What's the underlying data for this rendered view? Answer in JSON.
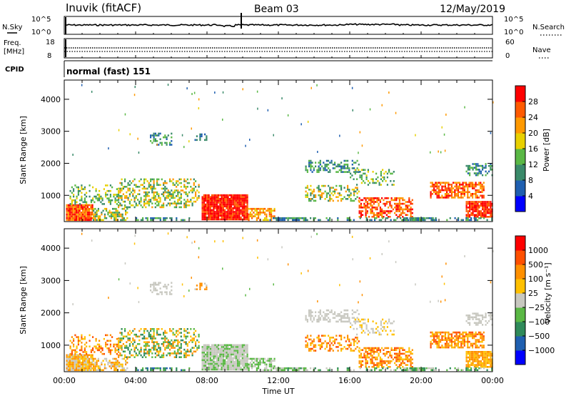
{
  "header": {
    "station": "Inuvik (fitACF)",
    "beam": "Beam 03",
    "date": "12/May/2019"
  },
  "strip_labels": {
    "nsky": "N.Sky",
    "nsearch": "N.Search",
    "freq_l1": "Freq.",
    "freq_l2": "[MHz]",
    "nave": "Nave",
    "cpid": "CPID",
    "cpid_text": "normal (fast) 151",
    "noise_ticks": [
      "10^5",
      "10^0"
    ],
    "freq_ticks": [
      "18",
      "8"
    ],
    "nave_ticks": [
      "60",
      "0"
    ]
  },
  "chart_data": [
    {
      "type": "heatmap",
      "name": "power",
      "ylabel": "Slant Range [km]",
      "xlabel": "",
      "xlim": [
        0,
        24
      ],
      "ylim": [
        180,
        4600
      ],
      "y_ticks": [
        1000,
        2000,
        3000,
        4000
      ],
      "colorbar": {
        "label": "Power [dB]",
        "ticks": [
          "4",
          "8",
          "12",
          "16",
          "20",
          "24",
          "28"
        ],
        "colors": [
          "#0000ff",
          "#1f5fb0",
          "#3a8a6a",
          "#5ab845",
          "#e8d000",
          "#ff9900",
          "#ff5a00",
          "#ff0000"
        ]
      }
    },
    {
      "type": "heatmap",
      "name": "velocity",
      "ylabel": "Slant Range [km]",
      "xlabel": "Time UT",
      "xlim": [
        0,
        24
      ],
      "ylim": [
        180,
        4600
      ],
      "y_ticks": [
        1000,
        2000,
        3000,
        4000
      ],
      "x_ticks": [
        "00:00",
        "04:00",
        "08:00",
        "12:00",
        "16:00",
        "20:00",
        "00:00"
      ],
      "colorbar": {
        "label": "Velocity [m s⁻¹]",
        "ticks": [
          "1000",
          "500",
          "100",
          "25",
          "−25",
          "−100",
          "−500",
          "−1000"
        ],
        "colors": [
          "#0000ff",
          "#1f5fb0",
          "#2f8a5a",
          "#5ab845",
          "#c8c8c0",
          "#ffc000",
          "#ff9000",
          "#ff5000",
          "#ff0000"
        ]
      }
    }
  ]
}
